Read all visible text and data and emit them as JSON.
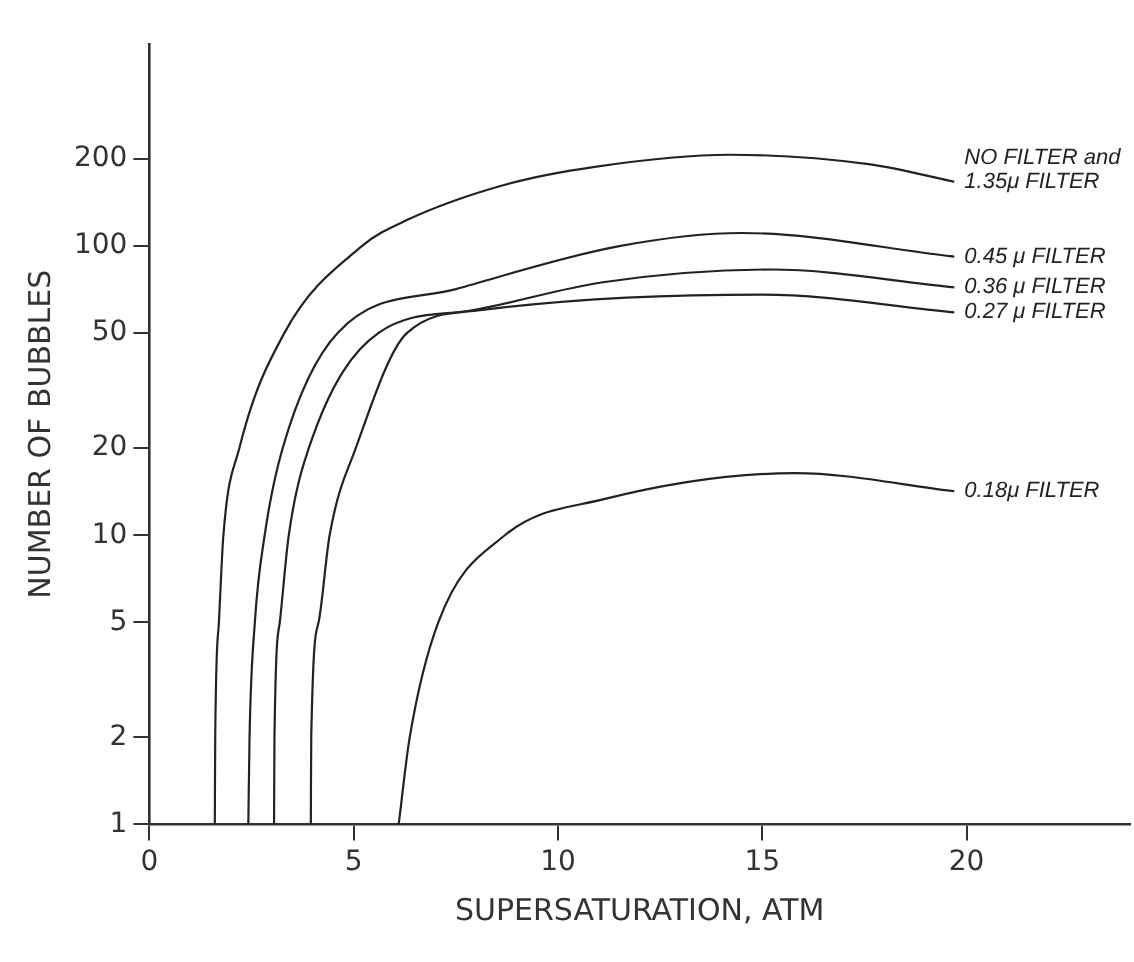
{
  "chart_data": {
    "type": "line",
    "xlabel": "SUPERSATURATION, ATM",
    "ylabel": "NUMBER OF BUBBLES",
    "log": "y",
    "grid": false,
    "legend": false,
    "marker": "none",
    "line_style": "solid",
    "xlim": [
      0,
      24
    ],
    "xticks": [
      0,
      5,
      10,
      15,
      20
    ],
    "ylim": [
      1,
      500
    ],
    "yticks": [
      1,
      2,
      5,
      10,
      20,
      50,
      100,
      200
    ],
    "series": [
      {
        "name": "NO FILTER and 1.35μ FILTER",
        "color": "#222222",
        "x": [
          1.6,
          1.61,
          1.7,
          1.81,
          2.2,
          3.3,
          5.2,
          6.3,
          8.7,
          10.9,
          14.2,
          17.6,
          19.7
        ],
        "values": [
          1,
          2,
          5,
          10,
          20,
          50,
          100,
          123,
          163,
          188,
          207,
          192,
          167
        ]
      },
      {
        "name": "0.45 μ FILTER",
        "color": "#222222",
        "x": [
          2.42,
          2.45,
          2.58,
          2.82,
          3.26,
          4.6,
          7.5,
          11.5,
          14.5,
          19.7
        ],
        "values": [
          1,
          2,
          5,
          10,
          20,
          50,
          71,
          100,
          111,
          92
        ]
      },
      {
        "name": "0.36 μ FILTER",
        "color": "#222222",
        "x": [
          3.05,
          3.06,
          3.19,
          3.41,
          3.9,
          5.6,
          7.9,
          11.1,
          15.2,
          19.7
        ],
        "values": [
          1,
          2,
          5,
          10,
          20,
          50,
          60,
          75,
          83,
          72
        ]
      },
      {
        "name": "0.27 μ FILTER",
        "color": "#222222",
        "x": [
          3.95,
          3.96,
          4.14,
          4.41,
          5.05,
          6.3,
          8.1,
          15,
          19.7
        ],
        "values": [
          1,
          2,
          5,
          10,
          20,
          50,
          60,
          68,
          59
        ]
      },
      {
        "name": "0.18μ FILTER",
        "color": "#222222",
        "x": [
          6.1,
          6.37,
          7.07,
          8.7,
          11.1,
          15.8,
          19.7
        ],
        "values": [
          1,
          2,
          5,
          10,
          13.3,
          16.4,
          14.2
        ]
      }
    ]
  }
}
